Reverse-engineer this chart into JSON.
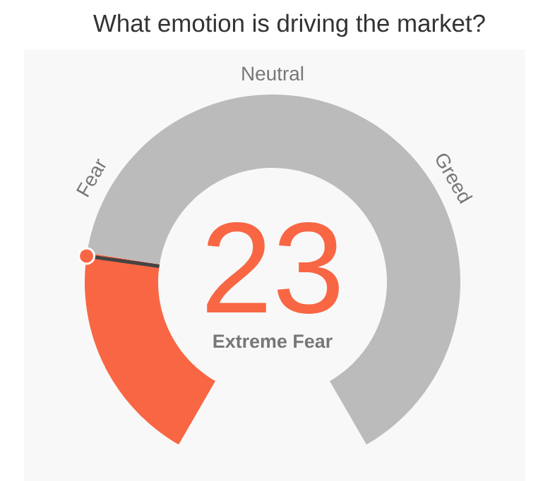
{
  "chart_data": {
    "type": "donut",
    "title": "What emotion is driving the market?",
    "categories": [
      null,
      null
    ],
    "values": [
      23,
      77
    ],
    "colors": [
      "#f96644",
      "#bbbbbb"
    ],
    "value_labels": [
      "23",
      null
    ],
    "annotations": [
      "Fear",
      "Neutral",
      "Greed",
      "Extreme Fear"
    ]
  }
}
